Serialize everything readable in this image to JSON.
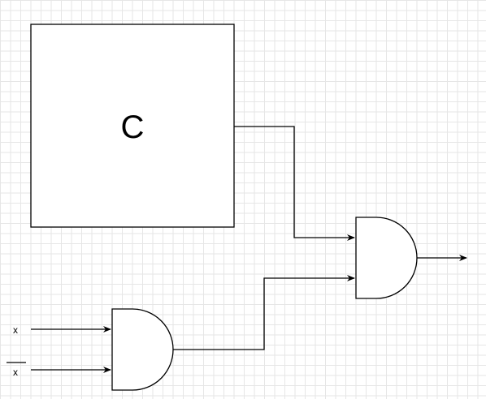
{
  "diagram": {
    "block": {
      "label": "C"
    },
    "inputs": [
      {
        "label": "x",
        "negated": false
      },
      {
        "label": "x",
        "negated": true
      }
    ],
    "gates": [
      {
        "type": "AND",
        "role": "first-stage"
      },
      {
        "type": "AND",
        "role": "output-stage"
      }
    ],
    "colors": {
      "stroke": "#000000",
      "fill": "#ffffff",
      "grid": "#e6e6e6"
    }
  }
}
